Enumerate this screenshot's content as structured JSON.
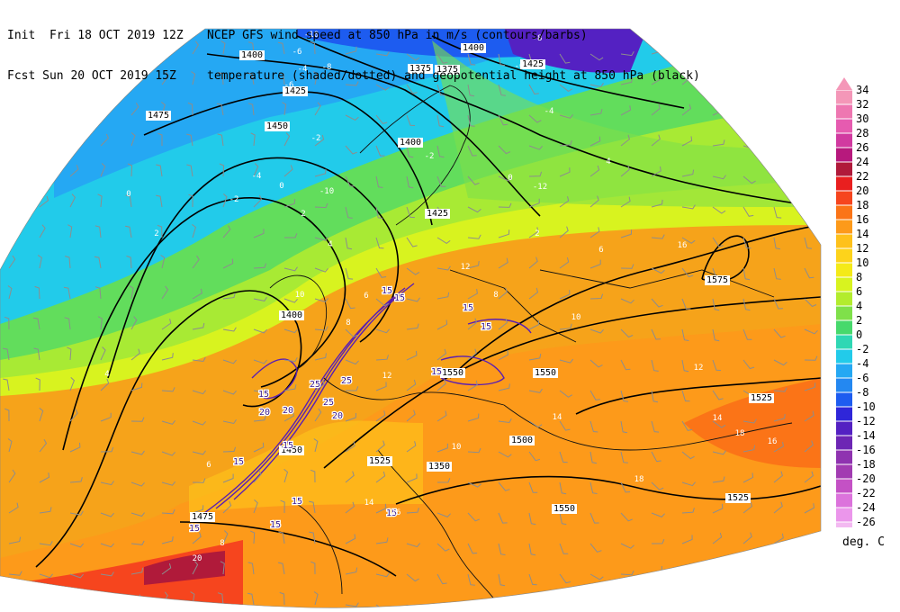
{
  "header": {
    "line1_left": "Init  Fri 18 OCT 2019 12Z",
    "line1_right": "NCEP GFS wind speed at 850 hPa in m/s (contours/barbs)",
    "line2_left": "Fcst Sun 20 OCT 2019 15Z",
    "line2_right": "temperature (shaded/dotted) and geopotential height at 850 hPa (black)"
  },
  "colorbar": {
    "units": "deg. C",
    "levels": [
      "34",
      "32",
      "30",
      "28",
      "26",
      "24",
      "22",
      "20",
      "18",
      "16",
      "14",
      "12",
      "10",
      "8",
      "6",
      "4",
      "2",
      "0",
      "-2",
      "-4",
      "-6",
      "-8",
      "-10",
      "-12",
      "-14",
      "-16",
      "-18",
      "-20",
      "-22",
      "-24",
      "-26"
    ],
    "colors": [
      "#f497b8",
      "#ee77b1",
      "#e65bb0",
      "#d13aa0",
      "#b7197d",
      "#b01a3a",
      "#e91f1f",
      "#f6451e",
      "#fb7417",
      "#fd9a1a",
      "#fec11b",
      "#fdd31b",
      "#f4ea18",
      "#d8f31f",
      "#b3ec2e",
      "#7fe04a",
      "#47d96c",
      "#2fd7b4",
      "#22cbea",
      "#25a8f3",
      "#2488f1",
      "#1d5cf0",
      "#2f26d9",
      "#5421c2",
      "#6d26b4",
      "#8f33b0",
      "#a23cb2",
      "#c451c5",
      "#dc73dc",
      "#eb96eb",
      "#f3b9f1"
    ]
  },
  "map": {
    "height_labels": [
      "1400",
      "1425",
      "1475",
      "1450",
      "1400",
      "1425",
      "1400",
      "1375",
      "1350",
      "1400",
      "1425",
      "1575",
      "1550",
      "1525",
      "1525",
      "1550",
      "1550",
      "1525",
      "1450",
      "1500",
      "1475",
      "1375"
    ],
    "wind_labels": [
      "15",
      "15",
      "20",
      "20",
      "25",
      "25",
      "25",
      "20",
      "15",
      "15",
      "15",
      "15",
      "15",
      "15",
      "15",
      "15",
      "15",
      "15"
    ],
    "temp_labels": [
      "-6",
      "-4",
      "-2",
      "0",
      "2",
      "4",
      "6",
      "8",
      "10",
      "12",
      "14",
      "16",
      "18",
      "20",
      "-10",
      "-8",
      "-6",
      "-4",
      "-2",
      "0",
      "2",
      "4",
      "6",
      "8",
      "10",
      "12",
      "14",
      "16",
      "18",
      "16",
      "14",
      "12",
      "10",
      "8",
      "6",
      "4",
      "2",
      "0",
      "-2",
      "-4",
      "-6",
      "-8",
      "-10",
      "-12"
    ]
  }
}
